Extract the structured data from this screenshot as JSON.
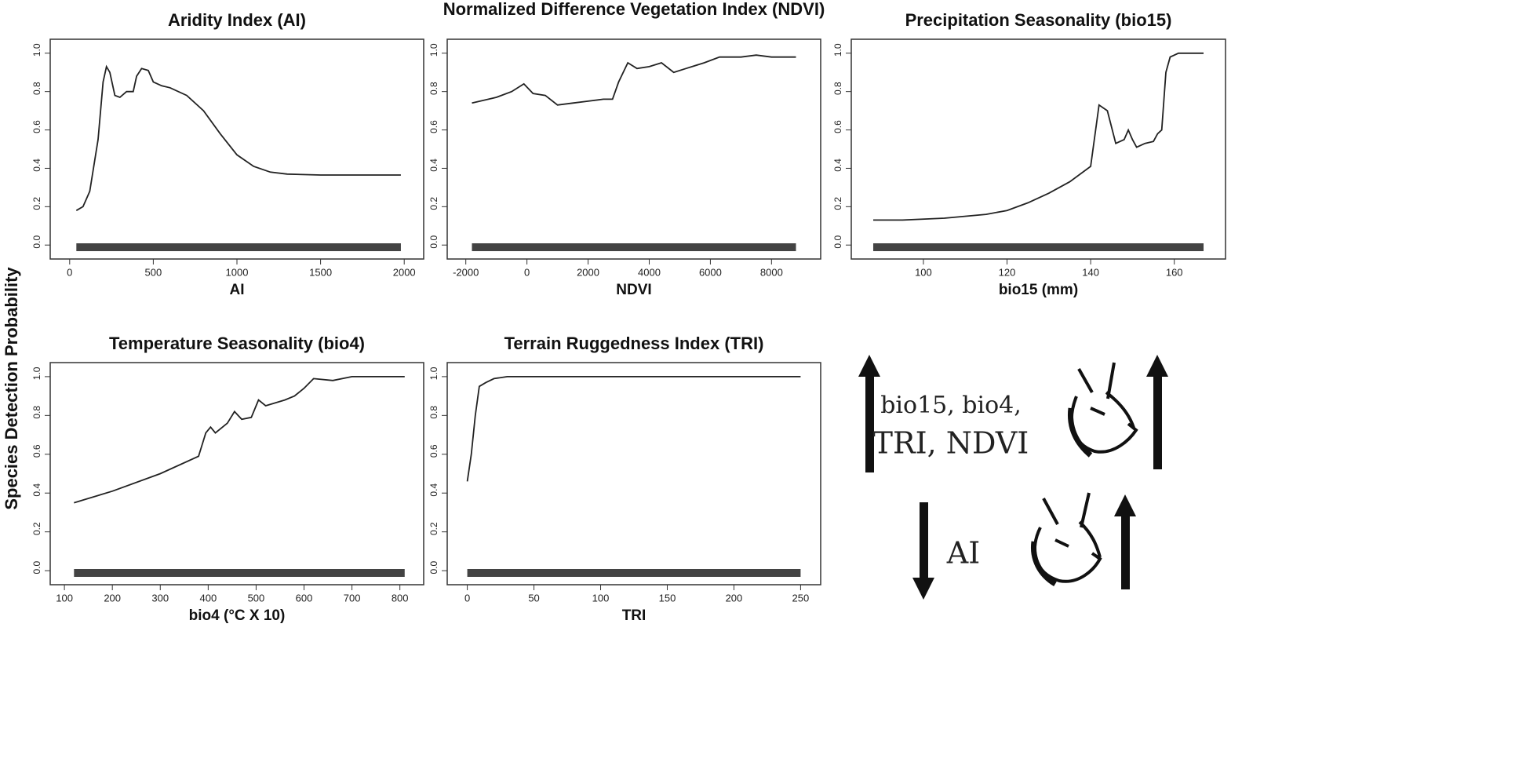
{
  "chart_data": [
    {
      "type": "line",
      "title": "Aridity Index (AI)",
      "x_label": "AI",
      "x": [
        40,
        80,
        120,
        170,
        200,
        220,
        240,
        270,
        300,
        340,
        380,
        400,
        430,
        470,
        500,
        550,
        600,
        700,
        800,
        900,
        1000,
        1100,
        1200,
        1300,
        1500,
        1700,
        1980
      ],
      "values": [
        0.18,
        0.2,
        0.28,
        0.55,
        0.85,
        0.93,
        0.9,
        0.78,
        0.77,
        0.8,
        0.8,
        0.88,
        0.92,
        0.91,
        0.85,
        0.83,
        0.82,
        0.78,
        0.7,
        0.58,
        0.47,
        0.41,
        0.38,
        0.37,
        0.365,
        0.365,
        0.365
      ],
      "color": "#222222",
      "xlim": [
        -60,
        2060
      ],
      "xticks": [
        0,
        500,
        1000,
        1500,
        2000
      ],
      "ylim": [
        -0.04,
        1.04
      ],
      "yticks": [
        {
          "value": 0,
          "label": "0.0"
        },
        0.2,
        0.4,
        0.6,
        0.8,
        {
          "value": 1,
          "label": "1.0"
        }
      ]
    },
    {
      "type": "line",
      "title": "Normalized Difference Vegetation Index (NDVI)",
      "x_label": "NDVI",
      "x": [
        -1800,
        -1000,
        -500,
        -100,
        200,
        600,
        1000,
        1500,
        2000,
        2500,
        2800,
        3000,
        3300,
        3600,
        4000,
        4400,
        4800,
        5200,
        5800,
        6300,
        7000,
        7500,
        8000,
        8800
      ],
      "values": [
        0.74,
        0.77,
        0.8,
        0.84,
        0.79,
        0.78,
        0.73,
        0.74,
        0.75,
        0.76,
        0.76,
        0.85,
        0.95,
        0.92,
        0.93,
        0.95,
        0.9,
        0.92,
        0.95,
        0.98,
        0.98,
        0.99,
        0.98,
        0.98
      ],
      "color": "#222222",
      "xlim": [
        -2300,
        9300
      ],
      "xticks": [
        -2000,
        0,
        2000,
        4000,
        6000,
        8000
      ],
      "ylim": [
        -0.04,
        1.04
      ],
      "yticks": [
        {
          "value": 0,
          "label": "0.0"
        },
        0.2,
        0.4,
        0.6,
        0.8,
        {
          "value": 1,
          "label": "1.0"
        }
      ]
    },
    {
      "type": "line",
      "title": "Precipitation Seasonality (bio15)",
      "x_label": "bio15 (mm)",
      "x": [
        88,
        95,
        105,
        115,
        120,
        125,
        130,
        135,
        140,
        142,
        144,
        146,
        148,
        149,
        150,
        151,
        153,
        155,
        156,
        157,
        158,
        159,
        161,
        167
      ],
      "values": [
        0.13,
        0.13,
        0.14,
        0.16,
        0.18,
        0.22,
        0.27,
        0.33,
        0.41,
        0.73,
        0.7,
        0.53,
        0.55,
        0.6,
        0.55,
        0.51,
        0.53,
        0.54,
        0.58,
        0.6,
        0.9,
        0.98,
        1.0,
        1.0
      ],
      "color": "#222222",
      "xlim": [
        85,
        170
      ],
      "xticks": [
        100,
        120,
        140,
        160
      ],
      "ylim": [
        -0.04,
        1.04
      ],
      "yticks": [
        {
          "value": 0,
          "label": "0.0"
        },
        0.2,
        0.4,
        0.6,
        0.8,
        {
          "value": 1,
          "label": "1.0"
        }
      ]
    },
    {
      "type": "line",
      "title": "Temperature Seasonality (bio4)",
      "x_label": "bio4 (°C X 10)",
      "x": [
        120,
        200,
        300,
        380,
        395,
        405,
        415,
        440,
        455,
        470,
        490,
        505,
        520,
        560,
        580,
        600,
        620,
        660,
        700,
        810
      ],
      "values": [
        0.35,
        0.41,
        0.5,
        0.59,
        0.71,
        0.74,
        0.71,
        0.76,
        0.82,
        0.78,
        0.79,
        0.88,
        0.85,
        0.88,
        0.9,
        0.94,
        0.99,
        0.98,
        1.0,
        1.0
      ],
      "color": "#222222",
      "xlim": [
        90,
        830
      ],
      "xticks": [
        100,
        200,
        300,
        400,
        500,
        600,
        700,
        800
      ],
      "ylim": [
        -0.04,
        1.04
      ],
      "yticks": [
        {
          "value": 0,
          "label": "0.0"
        },
        0.2,
        0.4,
        0.6,
        0.8,
        {
          "value": 1,
          "label": "1.0"
        }
      ]
    },
    {
      "type": "line",
      "title": "Terrain Ruggedness Index (TRI)",
      "x_label": "TRI",
      "x": [
        0,
        3,
        6,
        9,
        14,
        20,
        30,
        250
      ],
      "values": [
        0.46,
        0.6,
        0.8,
        0.95,
        0.97,
        0.99,
        1.0,
        1.0
      ],
      "color": "#222222",
      "xlim": [
        -8,
        258
      ],
      "xticks": [
        0,
        50,
        100,
        150,
        200,
        250
      ],
      "ylim": [
        -0.04,
        1.04
      ],
      "yticks": [
        {
          "value": 0,
          "label": "0.0"
        },
        0.2,
        0.4,
        0.6,
        0.8,
        {
          "value": 1,
          "label": "1.0"
        }
      ]
    }
  ],
  "y_label": "Species Detection Probability",
  "summary": {
    "up_lines": [
      "bio15, bio4,",
      "TRI, NDVI"
    ],
    "down_text": "AI"
  }
}
